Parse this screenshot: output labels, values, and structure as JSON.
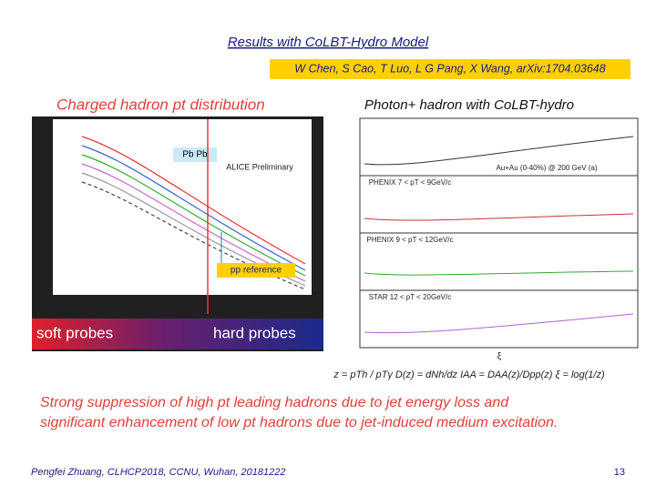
{
  "header": {
    "title": "Results with CoLBT-Hydro Model",
    "citation": "W Chen, S Cao, T Luo, L G Pang, X Wang, arXiv:1704.03648"
  },
  "left_figure": {
    "caption": "Charged hadron pt distribution",
    "collision_label": "Pb Pb",
    "experiment_label": "ALICE Preliminary",
    "reference_label": "pp reference",
    "soft_label": "soft probes",
    "hard_label": "hard probes"
  },
  "right_figure": {
    "caption": "Photon+ hadron with CoLBT-hydro",
    "panels": [
      "Au+Au (0-40%) @ 200 GeV (a)",
      "PHENIX 7 < pT < 9GeV/c",
      "PHENIX 9 < pT < 12GeV/c",
      "STAR 12 < pT < 20GeV/c"
    ],
    "x_axis_label": "ξ"
  },
  "formula": "z = pTh / pTγ     D(z) = dNh/dz     IAA = DAA(z)/Dpp(z)     ξ = log(1/z)",
  "bullets": [
    "Strong suppression of high pt leading hadrons due to jet energy loss and",
    "significant enhancement of low pt hadrons due to jet-induced medium excitation."
  ],
  "footer": {
    "author": "Pengfei Zhuang, CLHCP2018, CCNU, Wuhan, 20181222",
    "page": "13"
  }
}
